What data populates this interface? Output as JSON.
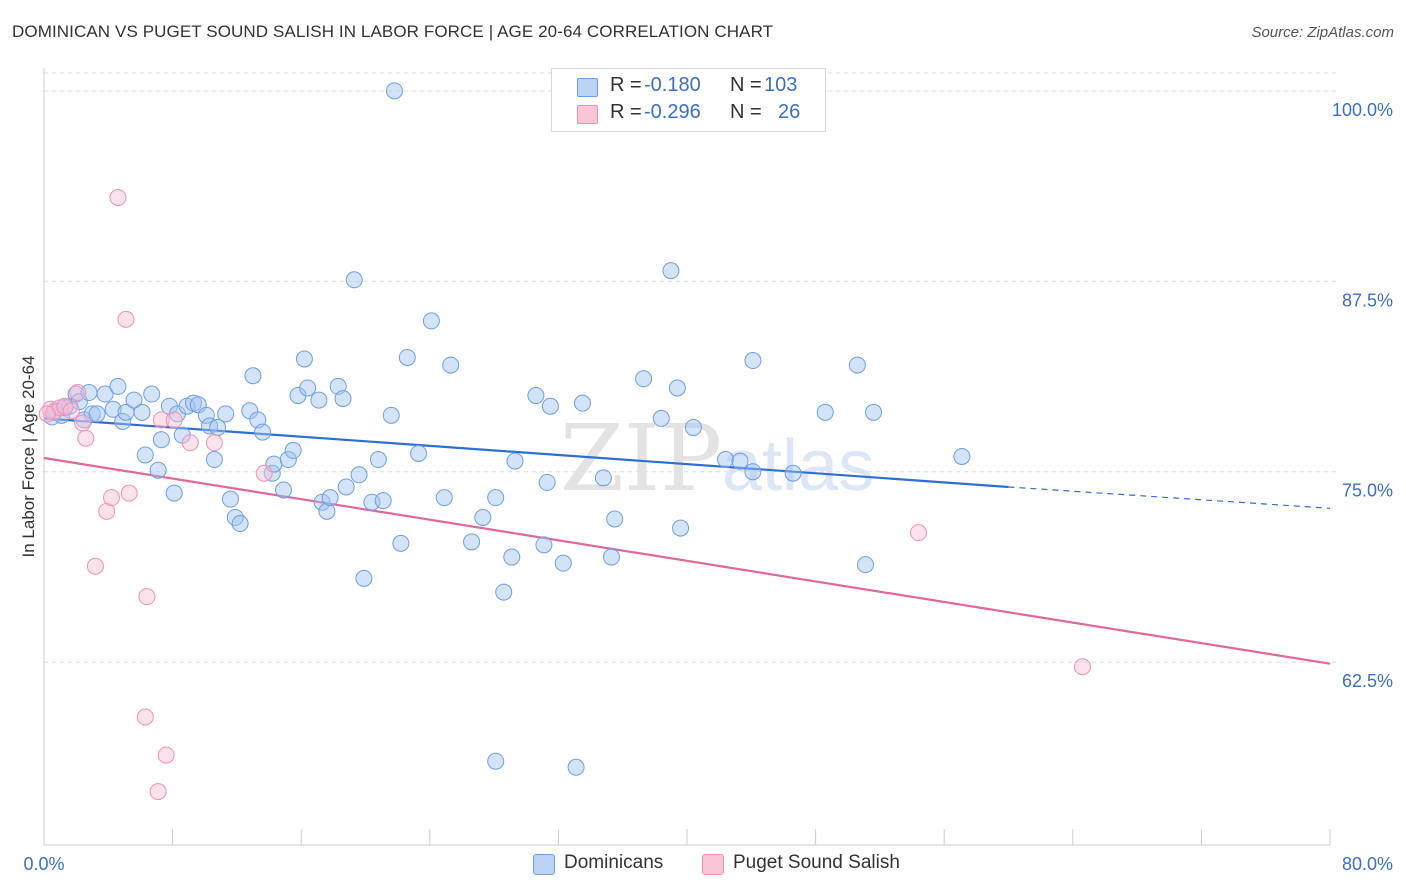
{
  "header": {
    "title": "DOMINICAN VS PUGET SOUND SALISH IN LABOR FORCE | AGE 20-64 CORRELATION CHART",
    "source": "Source: ZipAtlas.com"
  },
  "watermark": {
    "part1": "ZIP",
    "part2": "atlas"
  },
  "legend": {
    "rows": [
      {
        "r_label": "R =",
        "r_value": "-0.180",
        "n_label": "N =",
        "n_value": "103"
      },
      {
        "r_label": "R =",
        "r_value": "-0.296",
        "n_label": "N =",
        "n_value": "26"
      }
    ]
  },
  "bottom_legend": {
    "series1": "Dominicans",
    "series2": "Puget Sound Salish"
  },
  "chart_data": {
    "type": "scatter",
    "title": "DOMINICAN VS PUGET SOUND SALISH IN LABOR FORCE | AGE 20-64 CORRELATION CHART",
    "xlabel": "",
    "ylabel": "In Labor Force | Age 20-64",
    "xlim": [
      0,
      80
    ],
    "ylim": [
      50.5,
      101.5
    ],
    "x_tick_labels": [
      "0.0%",
      "80.0%"
    ],
    "y_ticks": [
      100,
      87.5,
      75,
      62.5
    ],
    "y_tick_labels": [
      "100.0%",
      "87.5%",
      "75.0%",
      "62.5%"
    ],
    "grid": true,
    "colors": {
      "dominicans": "#6d9eeb",
      "salish": "#f291b2",
      "dom_line": "#2f6fcf",
      "sal_line": "#e0689a",
      "tick_label": "#3b6fc4"
    },
    "series": [
      {
        "name": "Dominicans",
        "points": [
          [
            0.5,
            78.6
          ],
          [
            0.7,
            79.0
          ],
          [
            1.1,
            78.7
          ],
          [
            1.3,
            79.2
          ],
          [
            1.6,
            79.3
          ],
          [
            2.0,
            80.1
          ],
          [
            2.2,
            79.6
          ],
          [
            2.5,
            78.4
          ],
          [
            2.8,
            80.2
          ],
          [
            3.0,
            78.8
          ],
          [
            3.3,
            78.8
          ],
          [
            3.8,
            80.1
          ],
          [
            4.3,
            79.1
          ],
          [
            4.6,
            80.6
          ],
          [
            4.9,
            78.3
          ],
          [
            5.1,
            78.9
          ],
          [
            5.6,
            79.7
          ],
          [
            6.1,
            78.9
          ],
          [
            6.3,
            76.1
          ],
          [
            6.7,
            80.1
          ],
          [
            7.1,
            75.1
          ],
          [
            7.3,
            77.1
          ],
          [
            7.8,
            79.3
          ],
          [
            8.1,
            73.6
          ],
          [
            8.3,
            78.8
          ],
          [
            8.6,
            77.4
          ],
          [
            8.9,
            79.3
          ],
          [
            9.3,
            79.5
          ],
          [
            9.6,
            79.4
          ],
          [
            10.1,
            78.7
          ],
          [
            10.3,
            78.0
          ],
          [
            10.6,
            75.8
          ],
          [
            10.8,
            77.9
          ],
          [
            11.3,
            78.8
          ],
          [
            11.6,
            73.2
          ],
          [
            11.9,
            72.0
          ],
          [
            12.2,
            71.6
          ],
          [
            12.8,
            79.0
          ],
          [
            13.0,
            81.3
          ],
          [
            13.3,
            78.4
          ],
          [
            13.6,
            77.6
          ],
          [
            14.2,
            74.9
          ],
          [
            14.3,
            75.5
          ],
          [
            14.9,
            73.8
          ],
          [
            15.2,
            75.8
          ],
          [
            15.5,
            76.4
          ],
          [
            15.8,
            80.0
          ],
          [
            16.2,
            82.4
          ],
          [
            16.4,
            80.5
          ],
          [
            17.1,
            79.7
          ],
          [
            17.3,
            73.0
          ],
          [
            17.6,
            72.4
          ],
          [
            17.8,
            73.3
          ],
          [
            18.3,
            80.6
          ],
          [
            18.6,
            79.8
          ],
          [
            18.8,
            74.0
          ],
          [
            19.3,
            87.6
          ],
          [
            19.6,
            74.8
          ],
          [
            19.9,
            68.0
          ],
          [
            20.4,
            73.0
          ],
          [
            20.8,
            75.8
          ],
          [
            21.1,
            73.1
          ],
          [
            21.6,
            78.7
          ],
          [
            21.8,
            100.0
          ],
          [
            22.2,
            70.3
          ],
          [
            22.6,
            82.5
          ],
          [
            23.3,
            76.2
          ],
          [
            24.1,
            84.9
          ],
          [
            24.9,
            73.3
          ],
          [
            25.3,
            82.0
          ],
          [
            26.6,
            70.4
          ],
          [
            27.3,
            72.0
          ],
          [
            28.1,
            73.3
          ],
          [
            28.6,
            67.1
          ],
          [
            29.1,
            69.4
          ],
          [
            29.3,
            75.7
          ],
          [
            30.6,
            80.0
          ],
          [
            31.1,
            70.2
          ],
          [
            31.3,
            74.3
          ],
          [
            31.5,
            79.3
          ],
          [
            32.3,
            69.0
          ],
          [
            33.1,
            55.6
          ],
          [
            33.5,
            79.5
          ],
          [
            34.8,
            74.6
          ],
          [
            35.3,
            69.4
          ],
          [
            35.5,
            71.9
          ],
          [
            37.3,
            81.1
          ],
          [
            38.4,
            78.5
          ],
          [
            39.0,
            88.2
          ],
          [
            39.4,
            80.5
          ],
          [
            39.6,
            71.3
          ],
          [
            40.4,
            77.9
          ],
          [
            42.4,
            75.8
          ],
          [
            43.3,
            75.7
          ],
          [
            44.1,
            75.0
          ],
          [
            44.1,
            82.3
          ],
          [
            46.6,
            74.9
          ],
          [
            48.6,
            78.9
          ],
          [
            50.6,
            82.0
          ],
          [
            51.1,
            68.9
          ],
          [
            51.6,
            78.9
          ],
          [
            57.1,
            76.0
          ],
          [
            28.1,
            56.0
          ]
        ]
      },
      {
        "name": "Puget Sound Salish",
        "points": [
          [
            0.4,
            79.1
          ],
          [
            0.6,
            78.9
          ],
          [
            1.0,
            79.2
          ],
          [
            1.3,
            79.3
          ],
          [
            1.7,
            79.0
          ],
          [
            2.1,
            80.2
          ],
          [
            2.4,
            78.2
          ],
          [
            2.6,
            77.2
          ],
          [
            3.2,
            68.8
          ],
          [
            3.9,
            72.4
          ],
          [
            4.2,
            73.3
          ],
          [
            4.6,
            93.0
          ],
          [
            5.1,
            85.0
          ],
          [
            5.3,
            73.6
          ],
          [
            6.3,
            58.9
          ],
          [
            6.4,
            66.8
          ],
          [
            7.1,
            54.0
          ],
          [
            7.3,
            78.4
          ],
          [
            7.6,
            56.4
          ],
          [
            8.1,
            78.4
          ],
          [
            9.1,
            76.9
          ],
          [
            10.6,
            76.9
          ],
          [
            13.7,
            74.9
          ],
          [
            54.4,
            71.0
          ],
          [
            64.6,
            62.2
          ],
          [
            0.2,
            78.8
          ]
        ]
      }
    ],
    "trendlines": [
      {
        "series": "Dominicans",
        "x": [
          0,
          60
        ],
        "y": [
          78.5,
          74.0
        ],
        "dashed_extension_x": [
          60,
          80
        ],
        "dashed_extension_y": [
          74.0,
          72.6
        ]
      },
      {
        "series": "Puget Sound Salish",
        "x": [
          0,
          80
        ],
        "y": [
          75.9,
          62.4
        ]
      }
    ]
  }
}
